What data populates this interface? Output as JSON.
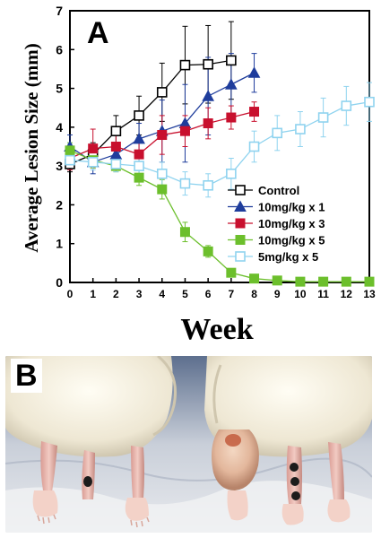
{
  "panel_a_label": "A",
  "panel_b_label": "B",
  "colors": {
    "control": "#000000",
    "10mg_x1": "#1f3d9c",
    "10mg_x3": "#c8102e",
    "10mg_x5": "#6cbf2c",
    "5mg_x5": "#8fd3ef"
  },
  "photo": {
    "description_icons": [
      "mouse-left",
      "mouse-right",
      "tumor"
    ]
  },
  "chart_data": {
    "type": "line",
    "xlabel": "Week",
    "ylabel": "Average Lesion Size (mm)",
    "xlim": [
      0,
      13
    ],
    "ylim": [
      0,
      7
    ],
    "xticks": [
      "0",
      "1",
      "2",
      "3",
      "4",
      "5",
      "6",
      "7",
      "8",
      "9",
      "10",
      "11",
      "12",
      "13"
    ],
    "yticks": [
      "0",
      "1",
      "2",
      "3",
      "4",
      "5",
      "6",
      "7"
    ],
    "legend_position": "center-right",
    "series": [
      {
        "name": "Control",
        "marker": "square-open",
        "color": "#000000",
        "x": [
          0,
          1,
          2,
          3,
          4,
          5,
          6,
          7
        ],
        "y": [
          3.05,
          3.3,
          3.9,
          4.3,
          4.9,
          5.6,
          5.62,
          5.72
        ],
        "err": [
          0.2,
          0.3,
          0.4,
          0.5,
          0.75,
          1.0,
          1.0,
          1.0
        ]
      },
      {
        "name": "10mg/kg x 1",
        "marker": "triangle-filled",
        "color": "#1f3d9c",
        "x": [
          0,
          1,
          2,
          3,
          4,
          5,
          6,
          7,
          8
        ],
        "y": [
          3.5,
          3.1,
          3.3,
          3.7,
          3.9,
          4.1,
          4.8,
          5.1,
          5.4
        ],
        "err": [
          0.3,
          0.3,
          0.3,
          0.4,
          0.8,
          1.0,
          1.0,
          0.8,
          0.5
        ]
      },
      {
        "name": "10mg/kg x 3",
        "marker": "square-filled",
        "color": "#c8102e",
        "x": [
          0,
          1,
          2,
          3,
          4,
          5,
          6,
          7,
          8
        ],
        "y": [
          3.2,
          3.45,
          3.5,
          3.3,
          3.8,
          3.9,
          4.1,
          4.25,
          4.4
        ],
        "err": [
          0.3,
          0.5,
          0.3,
          0.4,
          0.5,
          0.4,
          0.4,
          0.3,
          0.25
        ]
      },
      {
        "name": "10mg/kg x 5",
        "marker": "square-filled",
        "color": "#6cbf2c",
        "x": [
          0,
          1,
          2,
          3,
          4,
          5,
          6,
          7,
          8,
          9,
          10,
          11,
          12,
          13
        ],
        "y": [
          3.4,
          3.15,
          3.0,
          2.7,
          2.4,
          1.3,
          0.8,
          0.25,
          0.1,
          0.05,
          0.02,
          0.02,
          0.02,
          0.02
        ],
        "err": [
          0.2,
          0.2,
          0.15,
          0.2,
          0.25,
          0.25,
          0.15,
          0.1,
          0.05,
          0.0,
          0.0,
          0.0,
          0.0,
          0.0
        ]
      },
      {
        "name": "5mg/kg x 5",
        "marker": "square-open",
        "color": "#8fd3ef",
        "x": [
          0,
          1,
          2,
          3,
          4,
          5,
          6,
          7,
          8,
          9,
          10,
          11,
          12,
          13
        ],
        "y": [
          3.15,
          3.1,
          3.05,
          3.0,
          2.8,
          2.55,
          2.5,
          2.8,
          3.5,
          3.85,
          3.95,
          4.25,
          4.55,
          4.65
        ],
        "err": [
          0.2,
          0.2,
          0.2,
          0.3,
          0.3,
          0.3,
          0.3,
          0.4,
          0.4,
          0.45,
          0.45,
          0.5,
          0.5,
          0.5
        ]
      }
    ]
  }
}
